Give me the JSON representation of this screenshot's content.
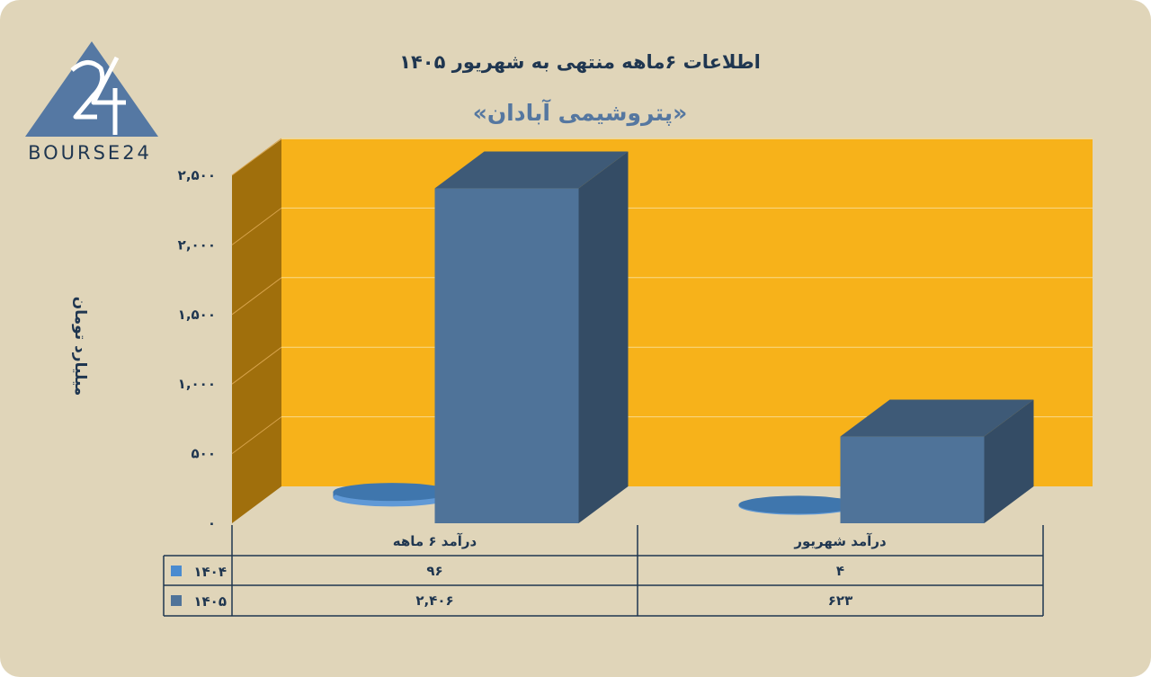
{
  "chart_data": {
    "type": "bar",
    "title": "اطلاعات ۶ماهه منتهی به شهریور ۱۴۰۵",
    "subtitle": "«پتروشیمی آبادان»",
    "ylabel": "میلیارد تومان",
    "ylim": [
      0,
      2500
    ],
    "yticks": [
      0,
      500,
      1000,
      1500,
      2000,
      2500
    ],
    "ytick_labels": [
      "۰",
      "۵۰۰",
      "۱,۰۰۰",
      "۱,۵۰۰",
      "۲,۰۰۰",
      "۲,۵۰۰"
    ],
    "categories": [
      "درآمد ۶ ماهه",
      "درآمد شهریور"
    ],
    "series": [
      {
        "name": "۱۴۰۴",
        "values": [
          96,
          4
        ],
        "labels": [
          "۹۶",
          "۴"
        ],
        "color": "#4a8bd0"
      },
      {
        "name": "۱۴۰۵",
        "values": [
          2406,
          623
        ],
        "labels": [
          "۲,۴۰۶",
          "۶۲۳"
        ],
        "color": "#4f7399"
      }
    ],
    "grid": true,
    "legend": "table-left"
  },
  "logo": {
    "text": "BOURSE24",
    "mark": "24"
  },
  "colors": {
    "background": "#e0d5b9",
    "plot_back": "#f7b21a",
    "plot_side": "#a06f0c",
    "text": "#1f3650"
  }
}
